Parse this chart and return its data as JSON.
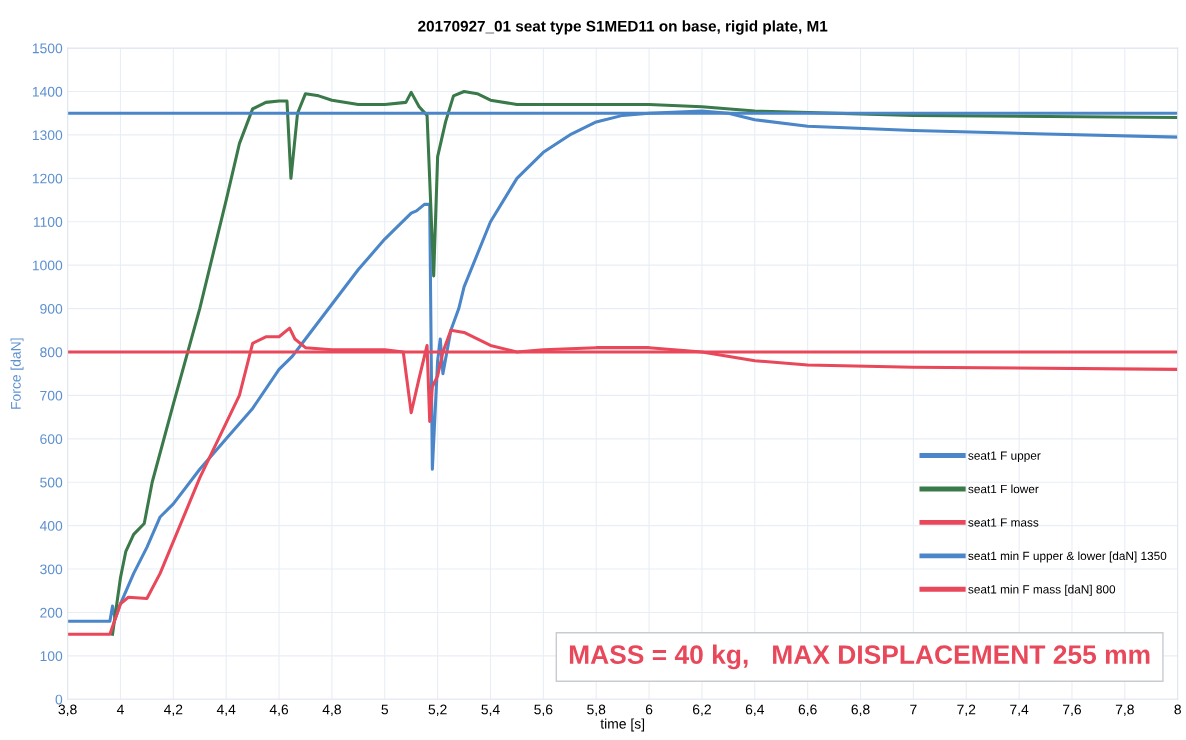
{
  "chart_data": {
    "type": "line",
    "title": "20170927_01 seat type S1MED11 on base, rigid plate, M1",
    "xlabel": "time [s]",
    "ylabel": "Force [daN]",
    "xlim": [
      3.8,
      8
    ],
    "xticks": [
      {
        "value": 3.8,
        "label": "3,8"
      },
      4,
      {
        "value": 4.2,
        "label": "4,2"
      },
      {
        "value": 4.4,
        "label": "4,4"
      },
      {
        "value": 4.6,
        "label": "4,6"
      },
      {
        "value": 4.8,
        "label": "4,8"
      },
      5,
      {
        "value": 5.2,
        "label": "5,2"
      },
      {
        "value": 5.4,
        "label": "5,4"
      },
      {
        "value": 5.6,
        "label": "5,6"
      },
      {
        "value": 5.8,
        "label": "5,8"
      },
      6,
      {
        "value": 6.2,
        "label": "6,2"
      },
      {
        "value": 6.4,
        "label": "6,4"
      },
      {
        "value": 6.6,
        "label": "6,6"
      },
      {
        "value": 6.8,
        "label": "6,8"
      },
      7,
      {
        "value": 7.2,
        "label": "7,2"
      },
      {
        "value": 7.4,
        "label": "7,4"
      },
      {
        "value": 7.6,
        "label": "7,6"
      },
      {
        "value": 7.8,
        "label": "7,8"
      },
      8
    ],
    "ylim": [
      0,
      1500
    ],
    "yticks": [
      0,
      100,
      200,
      300,
      400,
      500,
      600,
      700,
      800,
      900,
      1000,
      1100,
      1200,
      1300,
      1400,
      1500
    ],
    "grid": true,
    "legend": "right",
    "marker": "none",
    "line_style": "solid",
    "series": [
      {
        "name": "seat1 F upper",
        "color": "#4a86c8",
        "x": [
          3.8,
          3.96,
          3.97,
          3.98,
          4.0,
          4.05,
          4.1,
          4.15,
          4.2,
          4.3,
          4.4,
          4.5,
          4.6,
          4.65,
          4.7,
          4.8,
          4.9,
          5.0,
          5.1,
          5.12,
          5.15,
          5.17,
          5.18,
          5.2,
          5.21,
          5.22,
          5.25,
          5.28,
          5.3,
          5.4,
          5.5,
          5.6,
          5.7,
          5.8,
          5.9,
          6.0,
          6.2,
          6.3,
          6.4,
          6.6,
          7.0,
          7.5,
          8.0
        ],
        "values": [
          180,
          180,
          215,
          185,
          220,
          290,
          350,
          420,
          450,
          530,
          600,
          670,
          760,
          790,
          830,
          910,
          990,
          1060,
          1120,
          1125,
          1140,
          1140,
          530,
          780,
          830,
          750,
          850,
          900,
          950,
          1100,
          1200,
          1260,
          1300,
          1330,
          1345,
          1350,
          1355,
          1350,
          1335,
          1320,
          1310,
          1302,
          1295
        ]
      },
      {
        "name": "seat1 F lower",
        "color": "#3a7a4a",
        "x": [
          3.97,
          4.0,
          4.02,
          4.05,
          4.09,
          4.12,
          4.2,
          4.3,
          4.4,
          4.45,
          4.5,
          4.55,
          4.6,
          4.63,
          4.645,
          4.67,
          4.7,
          4.75,
          4.8,
          4.9,
          5.0,
          5.08,
          5.1,
          5.13,
          5.16,
          5.185,
          5.2,
          5.23,
          5.26,
          5.3,
          5.35,
          5.4,
          5.5,
          6.0,
          6.2,
          6.4,
          7.0,
          8.0
        ],
        "values": [
          150,
          280,
          340,
          380,
          405,
          500,
          680,
          900,
          1150,
          1280,
          1360,
          1375,
          1378,
          1378,
          1200,
          1350,
          1395,
          1390,
          1380,
          1370,
          1370,
          1375,
          1398,
          1365,
          1345,
          975,
          1250,
          1330,
          1390,
          1400,
          1395,
          1380,
          1370,
          1370,
          1365,
          1355,
          1345,
          1340
        ]
      },
      {
        "name": "seat1 F mass",
        "color": "#e8485a",
        "x": [
          3.8,
          3.96,
          4.0,
          4.03,
          4.1,
          4.15,
          4.3,
          4.45,
          4.5,
          4.55,
          4.6,
          4.64,
          4.66,
          4.7,
          4.8,
          4.9,
          5.0,
          5.07,
          5.1,
          5.13,
          5.16,
          5.17,
          5.18,
          5.2,
          5.22,
          5.25,
          5.3,
          5.35,
          5.4,
          5.5,
          5.6,
          5.8,
          6.0,
          6.2,
          6.4,
          6.6,
          7.0,
          8.0
        ],
        "values": [
          150,
          150,
          220,
          235,
          232,
          290,
          510,
          700,
          820,
          835,
          835,
          855,
          830,
          810,
          805,
          805,
          805,
          800,
          660,
          740,
          815,
          640,
          720,
          745,
          800,
          850,
          845,
          830,
          815,
          800,
          805,
          810,
          810,
          800,
          780,
          770,
          765,
          760
        ]
      },
      {
        "name": "seat1 min F upper & lower [daN] 1350",
        "color": "#4a86c8",
        "x": [
          3.8,
          8.0
        ],
        "values": [
          1350,
          1350
        ]
      },
      {
        "name": "seat1 min F mass [daN] 800",
        "color": "#e8485a",
        "x": [
          3.8,
          8.0
        ],
        "values": [
          800,
          800
        ]
      }
    ],
    "annotations": [
      "MASS = 40 kg,   MAX DISPLACEMENT 255 mm"
    ]
  }
}
